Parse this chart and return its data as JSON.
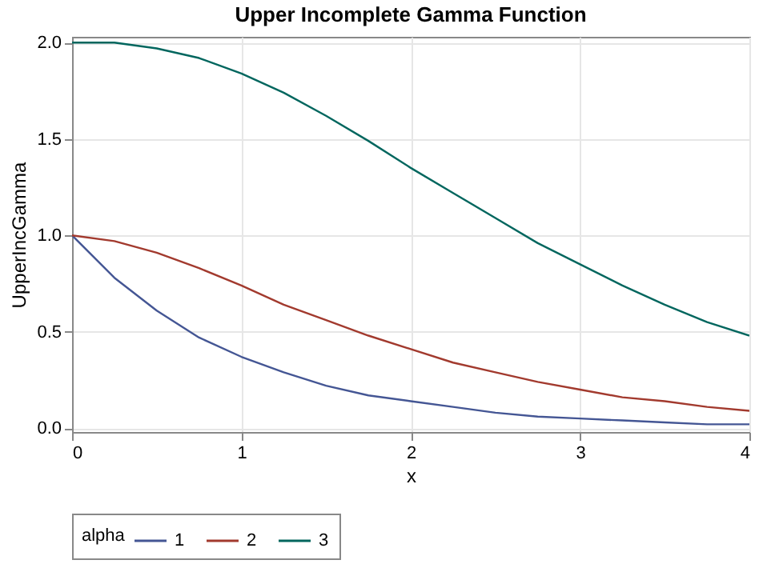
{
  "chart_data": {
    "type": "line",
    "title": "Upper Incomplete Gamma Function",
    "xlabel": "x",
    "ylabel": "UpperIncGamma",
    "legend_title": "alpha",
    "x": [
      0,
      0.25,
      0.5,
      0.75,
      1,
      1.25,
      1.5,
      1.75,
      2,
      2.25,
      2.5,
      2.75,
      3,
      3.25,
      3.5,
      3.75,
      4
    ],
    "series": [
      {
        "name": "1",
        "color": "#445694",
        "values": [
          1,
          0.78,
          0.61,
          0.47,
          0.37,
          0.29,
          0.22,
          0.17,
          0.14,
          0.11,
          0.08,
          0.06,
          0.05,
          0.04,
          0.03,
          0.02,
          0.02
        ]
      },
      {
        "name": "2",
        "color": "#a23a2e",
        "values": [
          1,
          0.97,
          0.91,
          0.83,
          0.74,
          0.64,
          0.56,
          0.48,
          0.41,
          0.34,
          0.29,
          0.24,
          0.2,
          0.16,
          0.14,
          0.11,
          0.09
        ]
      },
      {
        "name": "3",
        "color": "#01665e",
        "values": [
          2,
          2,
          1.97,
          1.92,
          1.84,
          1.74,
          1.62,
          1.49,
          1.35,
          1.22,
          1.09,
          0.96,
          0.85,
          0.74,
          0.64,
          0.55,
          0.48
        ]
      }
    ],
    "xlim": [
      0,
      4
    ],
    "ylim": [
      -0.02,
      2.03
    ],
    "xticks": [
      0,
      1,
      2,
      3,
      4
    ],
    "yticks": [
      {
        "value": 0,
        "label": "0.0"
      },
      {
        "value": 0.5,
        "label": "0.5"
      },
      {
        "value": 1,
        "label": "1.0"
      },
      {
        "value": 1.5,
        "label": "1.5"
      },
      {
        "value": 2,
        "label": "2.0"
      }
    ],
    "grid": true,
    "legend": "bottom",
    "line_style": "solid",
    "marker": "none"
  }
}
